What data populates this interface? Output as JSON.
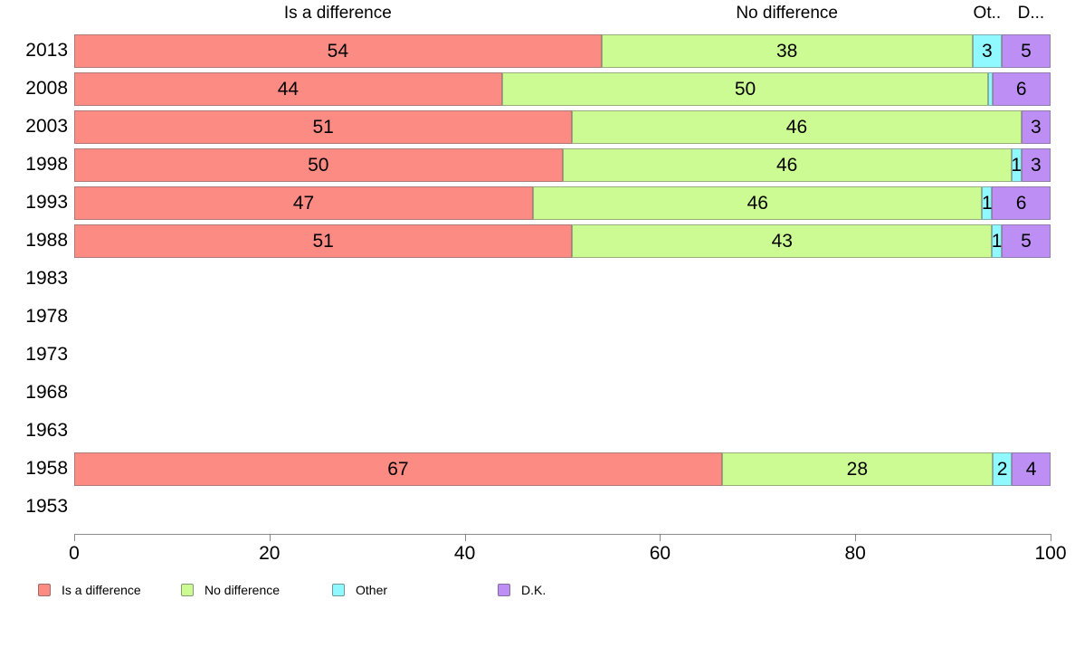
{
  "chart_data": {
    "type": "bar",
    "orientation": "horizontal",
    "stacked": true,
    "title": "",
    "xlabel": "",
    "ylabel": "",
    "xlim": [
      0,
      100
    ],
    "x_ticks": [
      0,
      20,
      40,
      60,
      80,
      100
    ],
    "grid": false,
    "legend_position": "bottom",
    "categories": [
      "2013",
      "2008",
      "2003",
      "1998",
      "1993",
      "1988",
      "1983",
      "1978",
      "1973",
      "1968",
      "1963",
      "1958",
      "1953"
    ],
    "series": [
      {
        "name": "Is a difference",
        "color": "#FC8B84",
        "values": [
          54,
          44,
          51,
          50,
          47,
          51,
          null,
          null,
          null,
          null,
          null,
          67,
          null
        ]
      },
      {
        "name": "No difference",
        "color": "#CCFB93",
        "values": [
          38,
          50,
          46,
          46,
          46,
          43,
          null,
          null,
          null,
          null,
          null,
          28,
          null
        ]
      },
      {
        "name": "Other",
        "color": "#90F8FF",
        "values": [
          3,
          0.4,
          0,
          1,
          1,
          1,
          null,
          null,
          null,
          null,
          null,
          2,
          null
        ]
      },
      {
        "name": "D.K.",
        "color": "#BD8FF5",
        "values": [
          5,
          6,
          3,
          3,
          6,
          5,
          null,
          null,
          null,
          null,
          null,
          4,
          null
        ]
      }
    ],
    "column_headers": [
      {
        "label": "Is a difference",
        "x_percent": 27
      },
      {
        "label": "No difference",
        "x_percent": 73
      },
      {
        "label": "Ot..",
        "x_percent": 93.5
      },
      {
        "label": "D...",
        "x_percent": 98
      }
    ],
    "legend": {
      "items": [
        "Is a difference",
        "No difference",
        "Other",
        "D.K."
      ]
    }
  }
}
